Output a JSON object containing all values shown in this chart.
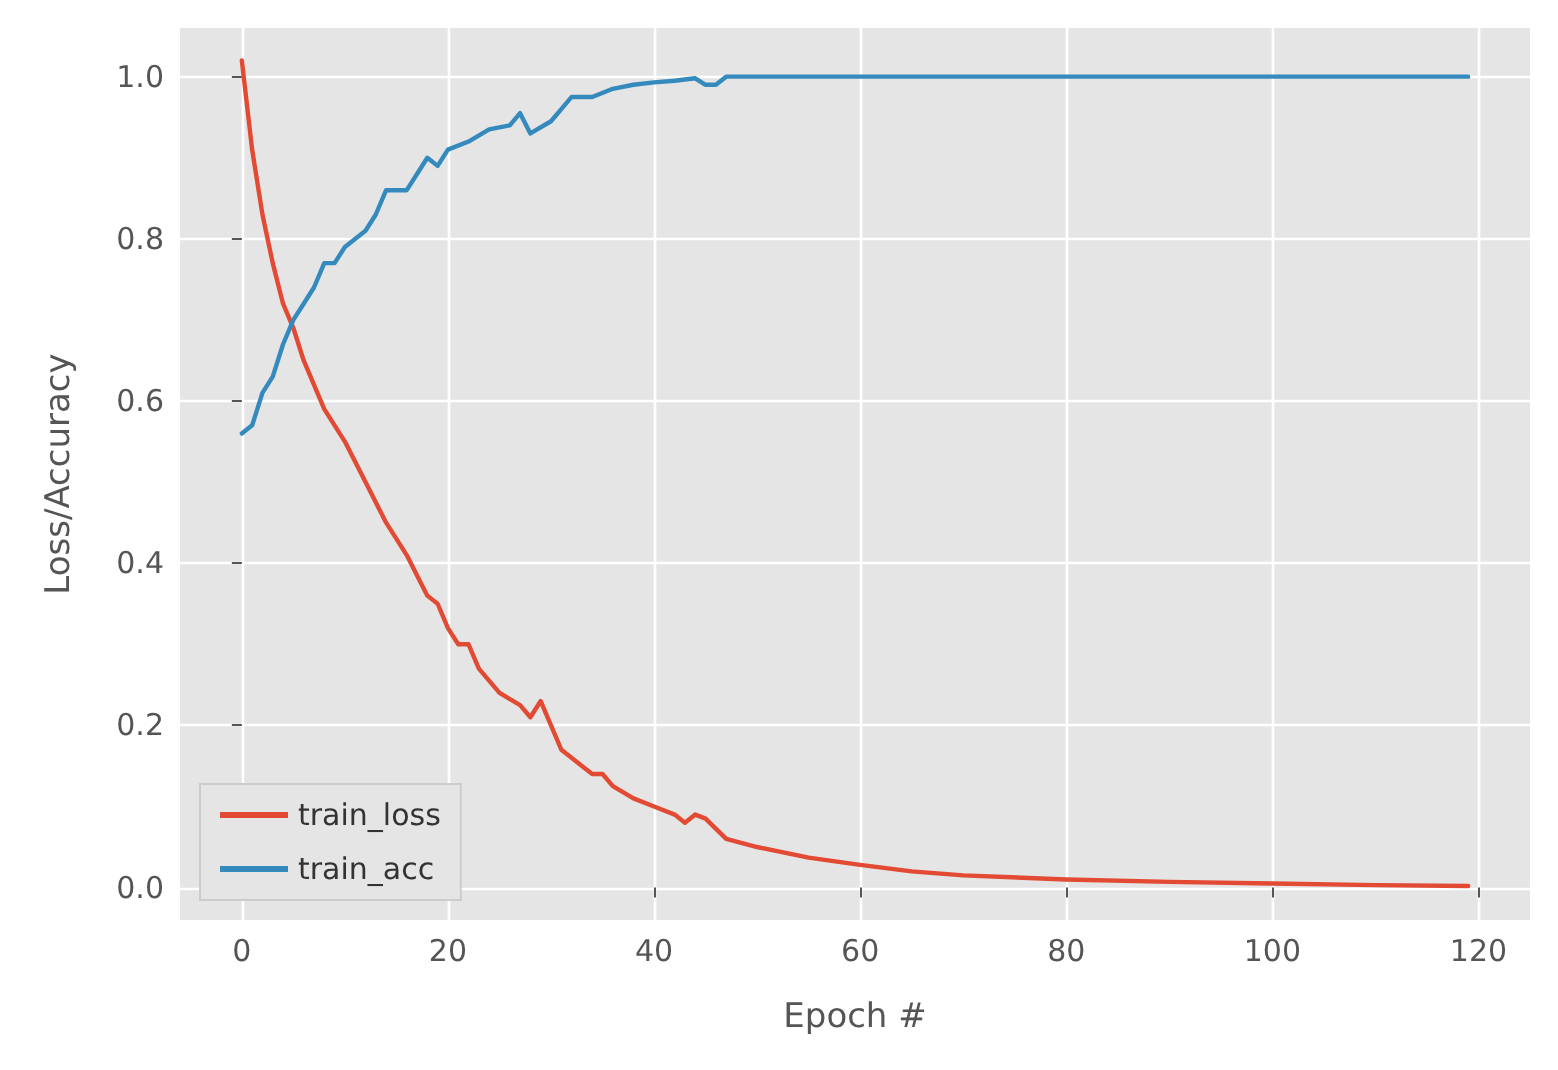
{
  "chart_data": {
    "type": "line",
    "xlabel": "Epoch #",
    "ylabel": "Loss/Accuracy",
    "xlim": [
      -6,
      125
    ],
    "ylim": [
      -0.04,
      1.06
    ],
    "xticks": [
      0,
      20,
      40,
      60,
      80,
      100,
      120
    ],
    "yticks": [
      {
        "value": 0,
        "label": "0.0"
      },
      0.2,
      0.4,
      0.6,
      0.8,
      {
        "value": 1,
        "label": "1.0"
      }
    ],
    "grid": true,
    "legend": "bottom left",
    "marker": "none",
    "line_style": "solid",
    "series": [
      {
        "name": "train_loss",
        "color": "#e24a33",
        "x": [
          0,
          1,
          2,
          3,
          4,
          5,
          6,
          8,
          10,
          12,
          14,
          16,
          18,
          19,
          20,
          21,
          22,
          23,
          25,
          27,
          28,
          29,
          30,
          31,
          33,
          34,
          35,
          36,
          38,
          40,
          42,
          43,
          44,
          45,
          47,
          50,
          55,
          60,
          65,
          70,
          80,
          90,
          100,
          110,
          119
        ],
        "values": [
          1.02,
          0.91,
          0.83,
          0.77,
          0.72,
          0.69,
          0.65,
          0.59,
          0.55,
          0.5,
          0.45,
          0.41,
          0.36,
          0.35,
          0.32,
          0.3,
          0.3,
          0.27,
          0.24,
          0.225,
          0.21,
          0.23,
          0.2,
          0.17,
          0.15,
          0.14,
          0.14,
          0.125,
          0.11,
          0.1,
          0.09,
          0.08,
          0.09,
          0.085,
          0.06,
          0.05,
          0.037,
          0.028,
          0.02,
          0.015,
          0.01,
          0.007,
          0.005,
          0.003,
          0.002
        ]
      },
      {
        "name": "train_acc",
        "color": "#348abd",
        "x": [
          0,
          1,
          2,
          3,
          4,
          5,
          6,
          7,
          8,
          9,
          10,
          12,
          13,
          14,
          15,
          16,
          17,
          18,
          19,
          20,
          22,
          24,
          26,
          27,
          28,
          30,
          31,
          32,
          34,
          36,
          38,
          40,
          42,
          44,
          45,
          46,
          47,
          49,
          119
        ],
        "values": [
          0.56,
          0.57,
          0.61,
          0.63,
          0.67,
          0.7,
          0.72,
          0.74,
          0.77,
          0.77,
          0.79,
          0.81,
          0.83,
          0.86,
          0.86,
          0.86,
          0.88,
          0.9,
          0.89,
          0.91,
          0.92,
          0.935,
          0.94,
          0.955,
          0.93,
          0.945,
          0.96,
          0.975,
          0.975,
          0.985,
          0.99,
          0.993,
          0.995,
          0.998,
          0.99,
          0.99,
          1.0,
          1.0,
          1.0
        ]
      }
    ]
  }
}
